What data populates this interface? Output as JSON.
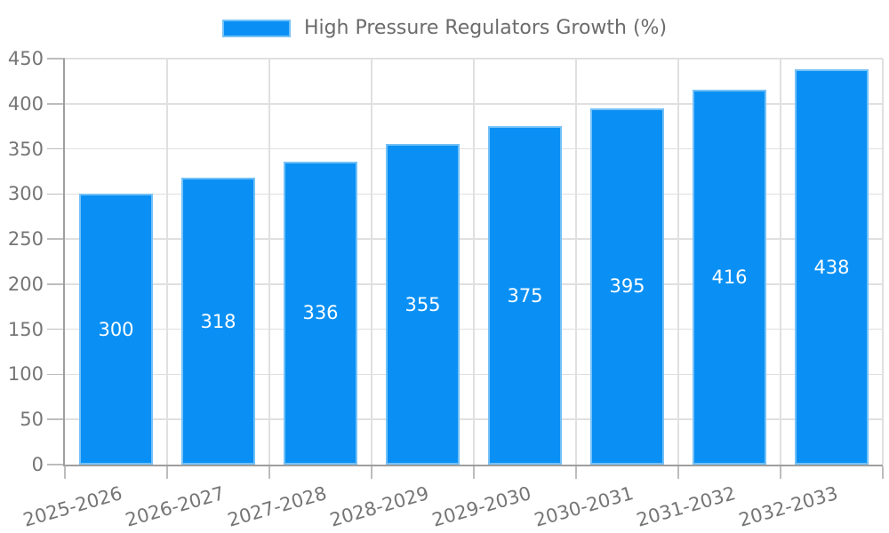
{
  "colors": {
    "bar_fill": "#0a90f4",
    "bar_border": "#74c1f7",
    "grid_line": "#e0e0e0",
    "axis_line": "#9e9e9e",
    "tick_mark": "#bdbdbd",
    "tick_label": "#757575",
    "value_label": "#ffffff",
    "legend_text": "#6b6b6b",
    "background": "#ffffff"
  },
  "legend": {
    "label": "High Pressure Regulators Growth (%)"
  },
  "chart_data": {
    "type": "bar",
    "title": "High Pressure Regulators Growth (%)",
    "categories": [
      "2025-2026",
      "2026-2027",
      "2027-2028",
      "2028-2029",
      "2029-2030",
      "2030-2031",
      "2031-2032",
      "2032-2033"
    ],
    "values": [
      300,
      318,
      336,
      355,
      375,
      395,
      416,
      438
    ],
    "value_labels": [
      "300",
      "318",
      "336",
      "355",
      "375",
      "395",
      "416",
      "438"
    ],
    "yticks": [
      0,
      50,
      100,
      150,
      200,
      250,
      300,
      350,
      400,
      450
    ],
    "ylim": [
      0,
      450
    ],
    "xlabel": "",
    "ylabel": "",
    "grid": true,
    "legend_position": "top",
    "value_labels_position": "inside-center",
    "x_label_rotation_deg": -16
  }
}
